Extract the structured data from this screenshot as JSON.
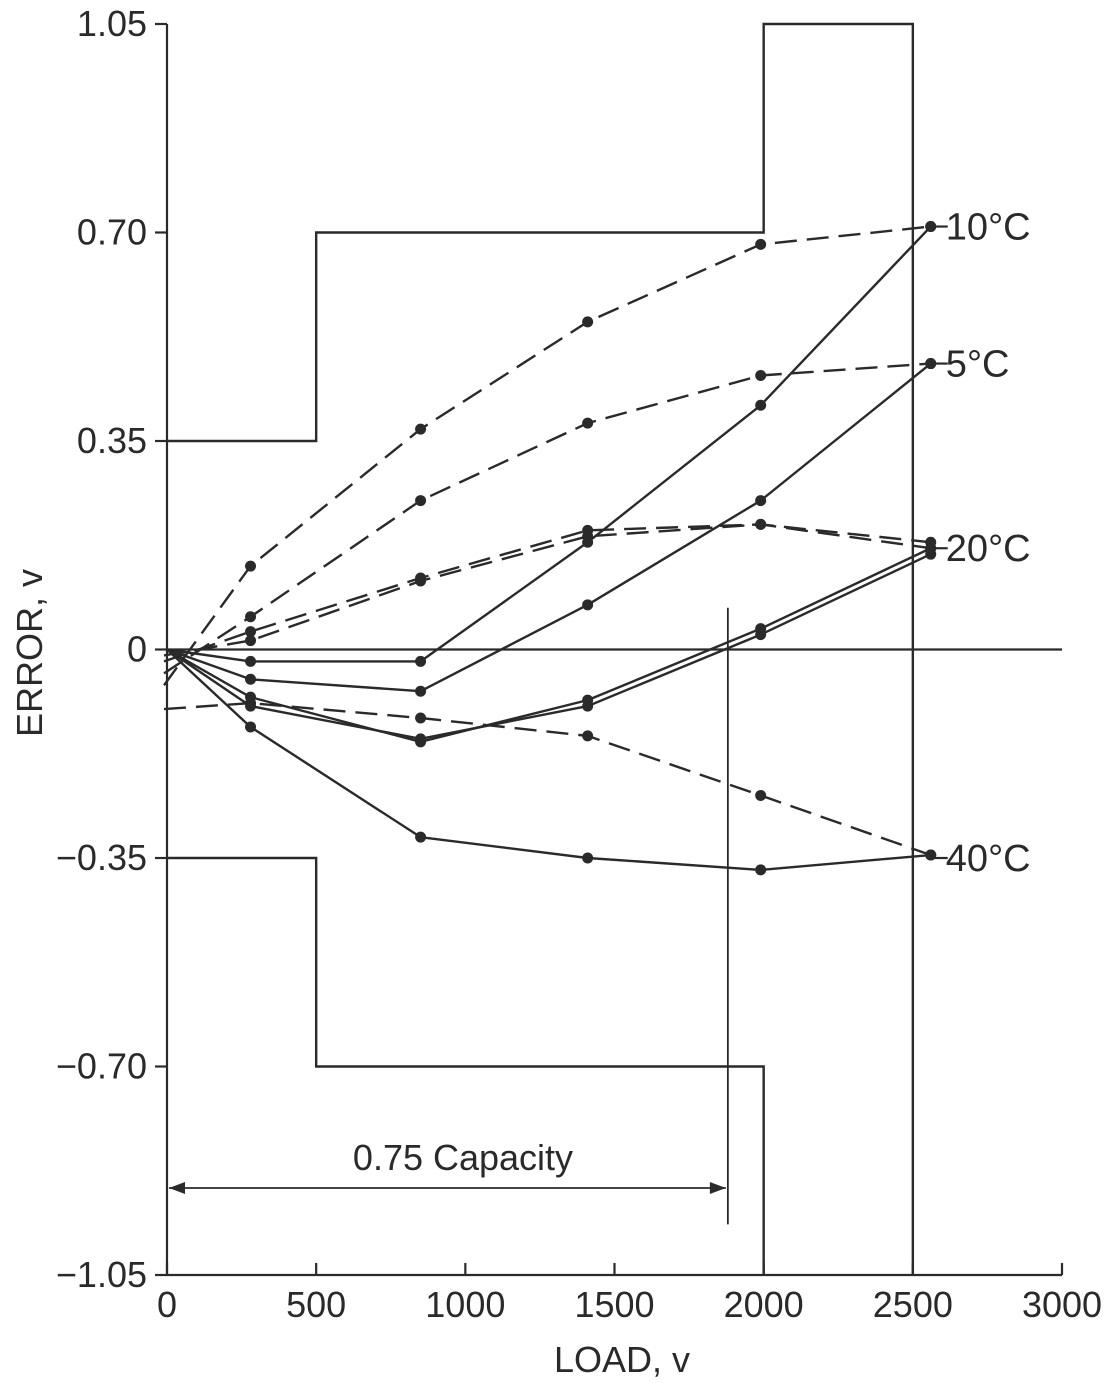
{
  "chart_data": {
    "type": "line",
    "xlabel": "LOAD, v",
    "ylabel": "ERROR, v",
    "xlim": [
      0,
      3000
    ],
    "ylim": [
      -1.05,
      1.05
    ],
    "xticks": [
      "0",
      "500",
      "1000",
      "1500",
      "2000",
      "2500",
      "3000"
    ],
    "yticks": [
      "1.05",
      "0.70",
      "0.35",
      "0",
      "−0.35",
      "−0.70",
      "−1.05"
    ],
    "ytick_values": [
      1.05,
      0.7,
      0.35,
      0,
      -0.35,
      -0.7,
      -1.05
    ],
    "xtick_values": [
      0,
      500,
      1000,
      1500,
      2000,
      2500,
      3000
    ],
    "grid": false,
    "tolerance_envelope": {
      "upper": [
        [
          0,
          0.35
        ],
        [
          500,
          0.35
        ],
        [
          500,
          0.7
        ],
        [
          2000,
          0.7
        ],
        [
          2000,
          1.05
        ],
        [
          2500,
          1.05
        ],
        [
          2500,
          -1.05
        ]
      ],
      "lower": [
        [
          0,
          -0.35
        ],
        [
          500,
          -0.35
        ],
        [
          500,
          -0.7
        ],
        [
          2000,
          -0.7
        ],
        [
          2000,
          -1.05
        ]
      ]
    },
    "annotation": {
      "text": "0.75 Capacity",
      "x_start": 0,
      "x_end": 1880
    },
    "curve_labels": [
      {
        "text": "10°C",
        "x": 2570,
        "y": 0.71
      },
      {
        "text": "5°C",
        "x": 2570,
        "y": 0.48
      },
      {
        "text": "20°C",
        "x": 2570,
        "y": 0.17
      },
      {
        "text": "40°C",
        "x": 2570,
        "y": -0.35
      }
    ],
    "series": [
      {
        "style": "dashed",
        "x": [
          -10,
          280,
          850,
          1410,
          1990,
          2560
        ],
        "y": [
          -0.06,
          0.14,
          0.37,
          0.55,
          0.68,
          0.71
        ]
      },
      {
        "style": "dashed",
        "x": [
          -10,
          280,
          850,
          1410,
          1990,
          2560
        ],
        "y": [
          -0.04,
          0.055,
          0.25,
          0.38,
          0.46,
          0.48
        ]
      },
      {
        "style": "dashed",
        "x": [
          -10,
          280,
          850,
          1410,
          1990,
          2560
        ],
        "y": [
          -0.02,
          0.03,
          0.12,
          0.2,
          0.21,
          0.18
        ]
      },
      {
        "style": "dashed",
        "x": [
          -10,
          280,
          850,
          1410,
          1990,
          2560
        ],
        "y": [
          -0.01,
          0.015,
          0.115,
          0.19,
          0.21,
          0.17
        ]
      },
      {
        "style": "dashed",
        "x": [
          -10,
          280,
          850,
          1410,
          1990,
          2560
        ],
        "y": [
          -0.1,
          -0.09,
          -0.115,
          -0.145,
          -0.245,
          -0.345
        ]
      },
      {
        "style": "solid",
        "x": [
          0,
          280,
          850,
          1410,
          1990,
          2560
        ],
        "y": [
          0,
          -0.02,
          -0.02,
          0.18,
          0.41,
          0.71
        ]
      },
      {
        "style": "solid",
        "x": [
          0,
          280,
          850,
          1410,
          1990,
          2560
        ],
        "y": [
          0,
          -0.05,
          -0.07,
          0.075,
          0.25,
          0.48
        ]
      },
      {
        "style": "solid",
        "x": [
          0,
          280,
          850,
          1410,
          1990,
          2560
        ],
        "y": [
          0,
          -0.08,
          -0.155,
          -0.085,
          0.035,
          0.17
        ]
      },
      {
        "style": "solid",
        "x": [
          0,
          280,
          850,
          1410,
          1990,
          2560
        ],
        "y": [
          0,
          -0.095,
          -0.15,
          -0.095,
          0.025,
          0.16
        ]
      },
      {
        "style": "solid",
        "x": [
          0,
          280,
          850,
          1410,
          1990,
          2560
        ],
        "y": [
          0,
          -0.13,
          -0.315,
          -0.35,
          -0.37,
          -0.345
        ]
      }
    ]
  }
}
